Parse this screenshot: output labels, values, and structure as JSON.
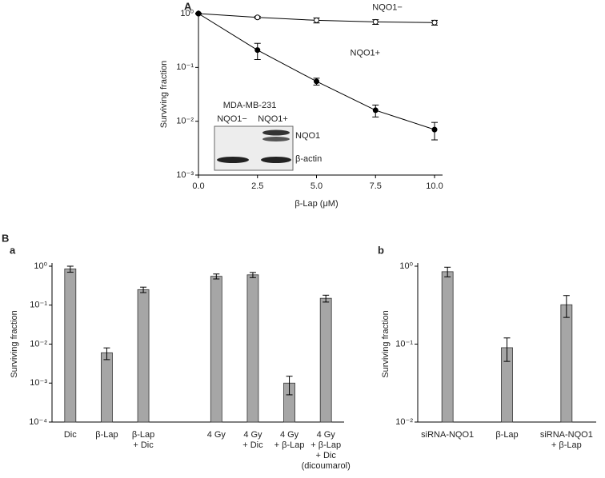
{
  "panel_labels": [
    "A",
    "B",
    "a",
    "b"
  ],
  "inset": {
    "title": "MDA-MB-231",
    "lanes": [
      "NQO1−",
      "NQO1+"
    ],
    "bands": [
      "NQO1",
      "β-actin"
    ]
  },
  "chart_data": [
    {
      "type": "line",
      "xlabel": "β-Lap (μM)",
      "ylabel": "Surviving fraction",
      "x": [
        0,
        2.5,
        5,
        7.5,
        10
      ],
      "xlim": [
        0,
        10
      ],
      "xticks": [
        {
          "value": 0,
          "label": "0.0"
        },
        2.5,
        {
          "value": 5,
          "label": "5.0"
        },
        7.5,
        {
          "value": 10,
          "label": "10.0"
        }
      ],
      "ylim": [
        0.001,
        1
      ],
      "log_y": true,
      "yticks": [
        {
          "value": 1,
          "label": "10⁰"
        },
        {
          "value": 0.1,
          "label": "10⁻¹"
        },
        {
          "value": 0.01,
          "label": "10⁻²"
        },
        {
          "value": 0.001,
          "label": "10⁻³"
        }
      ],
      "series": [
        {
          "name": "NQO1−",
          "color": "#000000",
          "marker": "open",
          "values": [
            1.0,
            0.85,
            0.75,
            0.7,
            0.68
          ],
          "errors": [
            0.02,
            0.04,
            0.08,
            0.07,
            0.07
          ]
        },
        {
          "name": "NQO1+",
          "color": "#000000",
          "marker": "filled",
          "values": [
            1.0,
            0.21,
            0.055,
            0.016,
            0.007
          ],
          "errors": [
            0.02,
            0.07,
            0.008,
            0.004,
            0.0025
          ]
        }
      ]
    },
    {
      "type": "bar",
      "ylabel": "Surviving fraction",
      "color": "#a6a6a6",
      "ylim": [
        0.0001,
        1
      ],
      "log_y": true,
      "yticks": [
        {
          "value": 1,
          "label": "10⁰"
        },
        {
          "value": 0.1,
          "label": "10⁻¹"
        },
        {
          "value": 0.01,
          "label": "10⁻²"
        },
        {
          "value": 0.001,
          "label": "10⁻³"
        },
        {
          "value": 0.0001,
          "label": "10⁻⁴"
        }
      ],
      "categories": [
        [
          "Dic"
        ],
        [
          "β-Lap"
        ],
        [
          "β-Lap",
          "+ Dic"
        ],
        null,
        [
          "4 Gy"
        ],
        [
          "4 Gy",
          "+ Dic"
        ],
        [
          "4 Gy",
          "+ β-Lap"
        ],
        [
          "4 Gy",
          "+ β-Lap",
          "+ Dic",
          "(dicoumarol)"
        ]
      ],
      "values": [
        0.85,
        0.006,
        0.25,
        null,
        0.55,
        0.6,
        0.001,
        0.15
      ],
      "errors": [
        0.15,
        0.002,
        0.04,
        null,
        0.08,
        0.09,
        0.0005,
        0.03
      ]
    },
    {
      "type": "bar",
      "ylabel": "Surviving fraction",
      "color": "#a6a6a6",
      "ylim": [
        0.01,
        1
      ],
      "log_y": true,
      "yticks": [
        {
          "value": 1,
          "label": "10⁰"
        },
        {
          "value": 0.1,
          "label": "10⁻¹"
        },
        {
          "value": 0.01,
          "label": "10⁻²"
        }
      ],
      "categories": [
        [
          "siRNA-NQO1"
        ],
        [
          "β-Lap"
        ],
        [
          "siRNA-NQO1",
          "+ β-Lap"
        ]
      ],
      "values": [
        0.85,
        0.09,
        0.32
      ],
      "errors": [
        0.12,
        0.03,
        0.1
      ]
    }
  ]
}
